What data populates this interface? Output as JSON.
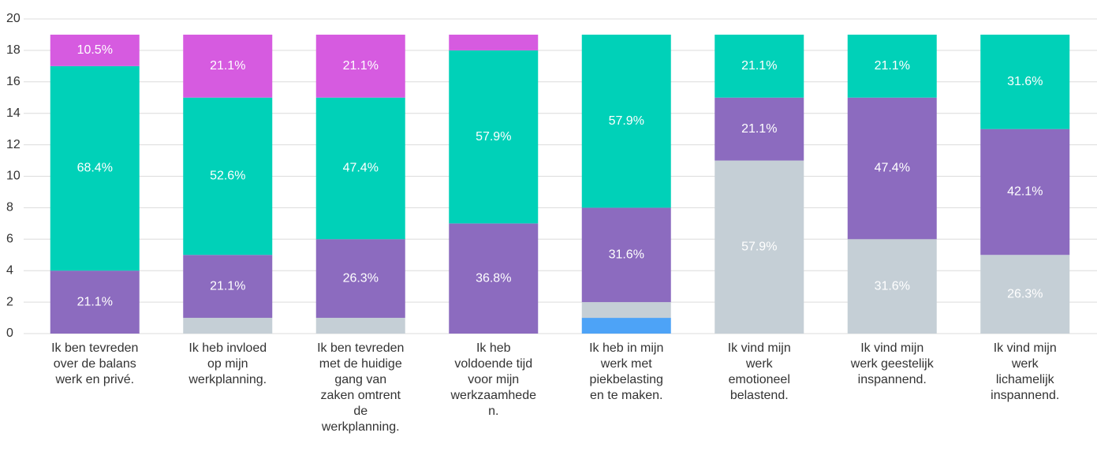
{
  "chart_data": {
    "type": "bar",
    "stacked": true,
    "categories": [
      "Ik ben tevreden over de balans werk en privé.",
      "Ik heb invloed op mijn werkplanning.",
      "Ik ben tevreden met de huidige gang van zaken omtrent de werkplanning.",
      "Ik heb voldoende tijd voor mijn werkzaamheden.",
      "Ik heb in mijn werk met piekbelasting en te maken.",
      "Ik vind mijn werk emotioneel belastend.",
      "Ik vind mijn werk geestelijk inspannend.",
      "Ik vind mijn werk lichamelijk inspannend."
    ],
    "series": [
      {
        "color": "#4da3f7",
        "values": [
          0,
          0,
          0,
          0,
          1,
          0,
          0,
          0
        ],
        "value_labels": [
          null,
          null,
          null,
          null,
          null,
          null,
          null,
          null
        ]
      },
      {
        "color": "#c5cfd6",
        "values": [
          0,
          1,
          1,
          0,
          1,
          11,
          6,
          5
        ],
        "value_labels": [
          null,
          null,
          null,
          null,
          null,
          "57.9%",
          "31.6%",
          "26.3%"
        ]
      },
      {
        "color": "#8c6bbf",
        "values": [
          4,
          4,
          5,
          7,
          6,
          4,
          9,
          8
        ],
        "value_labels": [
          "21.1%",
          "21.1%",
          "26.3%",
          "36.8%",
          "31.6%",
          "21.1%",
          "47.4%",
          "42.1%"
        ]
      },
      {
        "color": "#00d1b8",
        "values": [
          13,
          10,
          9,
          11,
          11,
          4,
          4,
          6
        ],
        "value_labels": [
          "68.4%",
          "52.6%",
          "47.4%",
          "57.9%",
          "57.9%",
          "21.1%",
          "21.1%",
          "31.6%"
        ]
      },
      {
        "color": "#d65be0",
        "values": [
          2,
          4,
          4,
          1,
          0,
          0,
          0,
          0
        ],
        "value_labels": [
          "10.5%",
          "21.1%",
          "21.1%",
          null,
          null,
          null,
          null,
          null
        ]
      }
    ],
    "ylim": [
      0,
      20
    ],
    "yticks": [
      0,
      2,
      4,
      6,
      8,
      10,
      12,
      14,
      16,
      18,
      20
    ],
    "grid": true
  }
}
